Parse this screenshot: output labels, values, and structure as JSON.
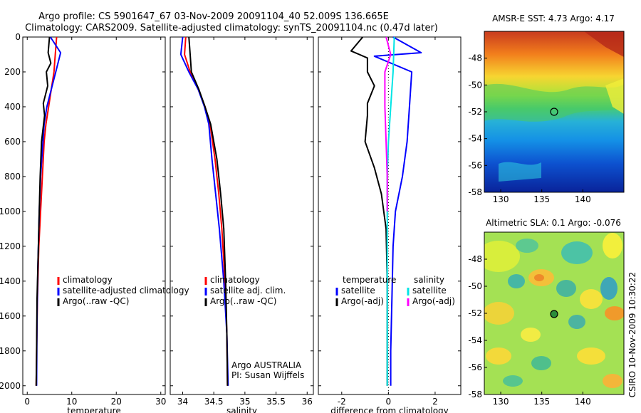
{
  "title_line1": "Argo profile: CS 5901647_67 03-Nov-2009 20091104_40 52.009S 136.665E",
  "title_line2": "Climatology: CARS2009. Satellite-adjusted climatology: synTS_20091104.nc (0.47d later)",
  "side_credit": "CSIRO 10-Nov-2009 10:30:22",
  "colors": {
    "climatology": "#ff0000",
    "satellite": "#0000ff",
    "argo": "#000000",
    "cyan": "#00e5e5",
    "magenta": "#ff00ff"
  },
  "chart_data": [
    {
      "type": "line",
      "id": "temperature",
      "xlabel": "temperature",
      "xlim": [
        -1,
        31
      ],
      "ylim": [
        0,
        2050
      ],
      "xticks": [
        0,
        10,
        20,
        30
      ],
      "yticks": [
        0,
        200,
        400,
        600,
        800,
        1000,
        1200,
        1400,
        1600,
        1800,
        2000
      ],
      "legend": [
        "climatology",
        "satellite-adjusted climatology",
        "Argo(..raw -QC)"
      ],
      "series": [
        {
          "name": "climatology",
          "color": "#ff0000",
          "x": [
            6.6,
            6.3,
            6.0,
            5.4,
            4.8,
            4.2,
            3.8,
            3.4,
            3.0,
            2.6,
            2.3,
            2.1,
            2.0
          ],
          "y": [
            0,
            100,
            200,
            300,
            400,
            500,
            600,
            800,
            1000,
            1200,
            1500,
            1800,
            2000
          ]
        },
        {
          "name": "satellite-adjusted climatology",
          "color": "#0000ff",
          "x": [
            5.2,
            7.5,
            6.4,
            5.4,
            4.4,
            3.8,
            3.4,
            3.0,
            2.7,
            2.4,
            2.2,
            2.1
          ],
          "y": [
            0,
            90,
            200,
            300,
            400,
            500,
            650,
            800,
            1000,
            1300,
            1600,
            2000
          ]
        },
        {
          "name": "Argo(..raw -QC)",
          "color": "#000000",
          "x": [
            5.0,
            4.7,
            5.3,
            4.3,
            4.6,
            3.6,
            3.9,
            3.2,
            2.9,
            2.7,
            2.5,
            2.2,
            2.1,
            2.0
          ],
          "y": [
            0,
            90,
            150,
            200,
            280,
            380,
            450,
            600,
            800,
            1000,
            1200,
            1500,
            1800,
            2000
          ]
        }
      ]
    },
    {
      "type": "line",
      "id": "salinity",
      "xlabel": "salinity",
      "xlim": [
        33.8,
        36.1
      ],
      "ylim": [
        0,
        2050
      ],
      "xticks": [
        34,
        34.5,
        35,
        35.5,
        36
      ],
      "xtick_labels": [
        "34",
        "34.5",
        "35",
        "35.5",
        "36"
      ],
      "legend": [
        "climatology",
        "satellite adj. clim.",
        "Argo(..raw -QC)"
      ],
      "annotation": [
        "Argo AUSTRALIA",
        "PI: Susan Wijffels"
      ],
      "series": [
        {
          "name": "climatology",
          "color": "#ff0000",
          "x": [
            34.05,
            34.03,
            34.12,
            34.25,
            34.36,
            34.44,
            34.52,
            34.58,
            34.63,
            34.68,
            34.71,
            34.72
          ],
          "y": [
            0,
            100,
            200,
            300,
            400,
            500,
            700,
            900,
            1100,
            1400,
            1700,
            2000
          ]
        },
        {
          "name": "satellite adj. clim.",
          "color": "#0000ff",
          "x": [
            34.0,
            33.97,
            34.1,
            34.25,
            34.35,
            34.42,
            34.47,
            34.53,
            34.59,
            34.66,
            34.71,
            34.73
          ],
          "y": [
            0,
            100,
            200,
            300,
            400,
            500,
            700,
            900,
            1100,
            1400,
            1700,
            2000
          ]
        },
        {
          "name": "Argo(..raw -QC)",
          "color": "#000000",
          "x": [
            34.1,
            34.12,
            34.14,
            34.26,
            34.36,
            34.45,
            34.55,
            34.61,
            34.66,
            34.69,
            34.71,
            34.72
          ],
          "y": [
            0,
            100,
            200,
            300,
            400,
            500,
            700,
            900,
            1100,
            1400,
            1700,
            2000
          ]
        }
      ]
    },
    {
      "type": "line",
      "id": "difference",
      "xlabel": "difference from climatology",
      "xlim": [
        -3,
        3.1
      ],
      "ylim": [
        0,
        2050
      ],
      "xticks": [
        -2,
        0,
        2
      ],
      "legend_groups": [
        {
          "heading": "temperature",
          "items": [
            "satellite",
            "Argo(-adj)"
          ]
        },
        {
          "heading": "salinity",
          "items": [
            "satellite",
            "Argo(-adj)"
          ]
        }
      ],
      "series": [
        {
          "name": "temperature satellite",
          "color": "#0000ff",
          "x": [
            0.2,
            1.4,
            -0.6,
            1.0,
            0.9,
            0.8,
            0.6,
            0.3,
            0.2,
            0.15,
            0.1,
            0.1
          ],
          "y": [
            0,
            90,
            110,
            200,
            400,
            600,
            800,
            1000,
            1200,
            1500,
            1800,
            2000
          ]
        },
        {
          "name": "temperature Argo(-adj)",
          "color": "#000000",
          "x": [
            -1.1,
            -1.6,
            -0.9,
            -0.9,
            -0.6,
            -0.9,
            -0.9,
            -1.0,
            -0.6,
            -0.3,
            -0.1,
            -0.05,
            -0.05,
            -0.05
          ],
          "y": [
            0,
            80,
            120,
            200,
            280,
            380,
            450,
            600,
            750,
            900,
            1100,
            1400,
            1700,
            2000
          ]
        },
        {
          "name": "salinity satellite",
          "color": "#00e5e5",
          "x": [
            0.25,
            0.2,
            0.1,
            0.0,
            -0.05,
            -0.05,
            -0.05,
            -0.05,
            -0.05
          ],
          "y": [
            0,
            200,
            400,
            600,
            800,
            1000,
            1400,
            1800,
            2000
          ]
        },
        {
          "name": "salinity Argo(-adj)",
          "color": "#ff00ff",
          "x": [
            -0.1,
            0.1,
            -0.15,
            -0.15,
            -0.1,
            -0.05,
            -0.05
          ],
          "y": [
            0,
            100,
            200,
            400,
            600,
            800,
            1000
          ]
        }
      ]
    },
    {
      "type": "heatmap",
      "id": "sst",
      "title": "AMSR-E SST: 4.73 Argo: 4.17",
      "xlim": [
        128,
        145
      ],
      "ylim": [
        -58,
        -46
      ],
      "xticks": [
        130,
        135,
        140
      ],
      "yticks": [
        -48,
        -50,
        -52,
        -54,
        -56,
        -58
      ],
      "marker": {
        "lon": 136.7,
        "lat": -52.0
      }
    },
    {
      "type": "heatmap",
      "id": "sla",
      "title": "Altimetric SLA: 0.1 Argo: -0.076",
      "xlim": [
        128,
        145
      ],
      "ylim": [
        -58,
        -46
      ],
      "xticks": [
        130,
        135,
        140
      ],
      "yticks": [
        -48,
        -50,
        -52,
        -54,
        -56,
        -58
      ],
      "marker": {
        "lon": 136.7,
        "lat": -52.0
      }
    }
  ]
}
